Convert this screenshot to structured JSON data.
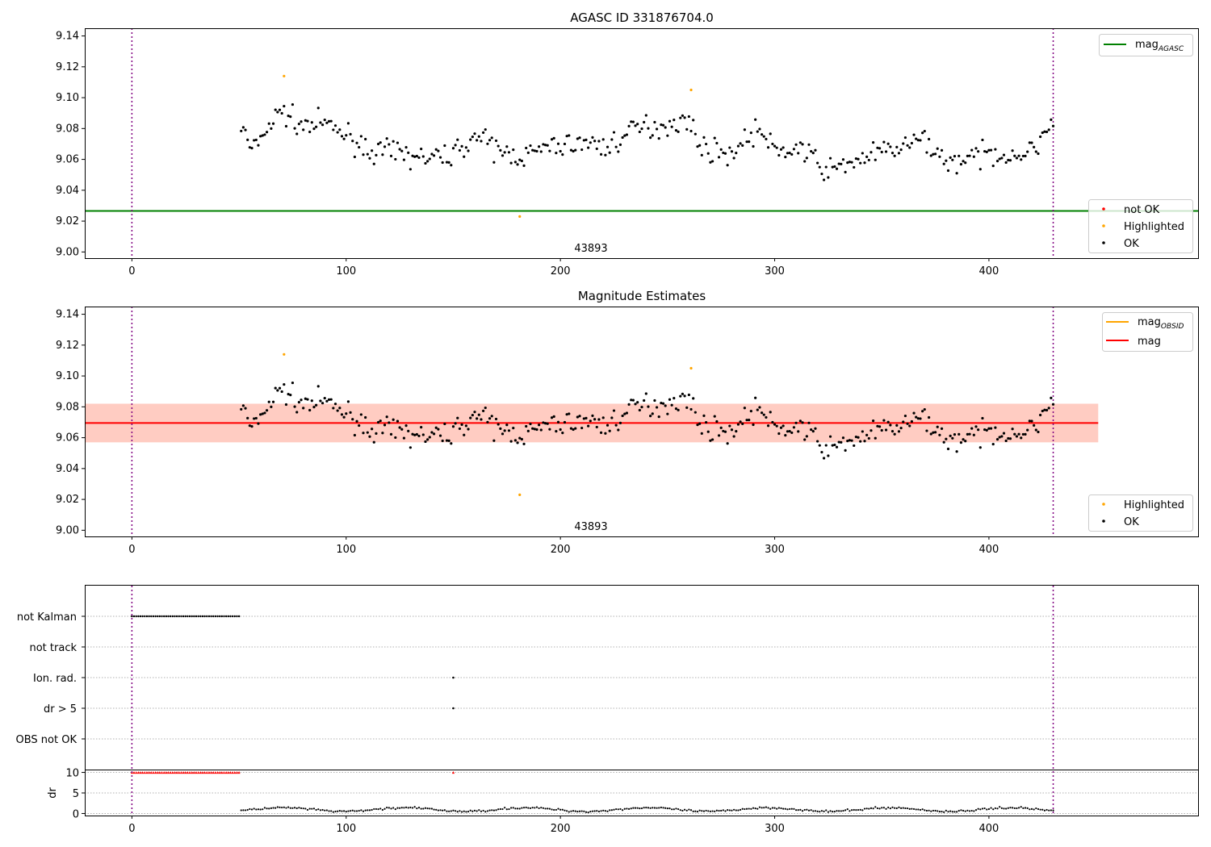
{
  "figure": {
    "panel1_title": "AGASC ID 331876704.0",
    "panel2_title": "Magnitude Estimates",
    "obsid_label": "43893"
  },
  "colors": {
    "ok": "#000000",
    "highlighted": "#ffa500",
    "not_ok": "#ff0000",
    "mag_agasc_line": "#008000",
    "mag_line": "#ff0000",
    "mag_obsid_line": "#ffa500",
    "band_red": "#ffc0cb",
    "band_orange": "#ffa07a",
    "obsid_boundary": "#800080",
    "grid": "#b0b0b0"
  },
  "legends": {
    "panel1_lines": [
      {
        "label": "mag",
        "sub": "AGASC",
        "color": "#008000"
      }
    ],
    "panel1_points": [
      {
        "label": "not OK",
        "color": "#ff0000"
      },
      {
        "label": "Highlighted",
        "color": "#ffa500"
      },
      {
        "label": "OK",
        "color": "#000000"
      }
    ],
    "panel2_lines": [
      {
        "label": "mag",
        "sub": "OBSID",
        "color": "#ffa500"
      },
      {
        "label": "mag",
        "sub": "",
        "color": "#ff0000"
      }
    ],
    "panel2_points": [
      {
        "label": "Highlighted",
        "color": "#ffa500"
      },
      {
        "label": "OK",
        "color": "#000000"
      }
    ]
  },
  "chart_data": [
    {
      "type": "scatter",
      "title": "AGASC ID 331876704.0",
      "xlim": [
        -22,
        498
      ],
      "ylim": [
        8.996,
        9.145
      ],
      "xticks": [
        0,
        100,
        200,
        300,
        400
      ],
      "yticks": [
        9.0,
        9.02,
        9.04,
        9.06,
        9.08,
        9.1,
        9.12,
        9.14
      ],
      "ytick_labels": [
        "9.00",
        "9.02",
        "9.04",
        "9.06",
        "9.08",
        "9.10",
        "9.12",
        "9.14"
      ],
      "mag_agasc": 9.0266,
      "obsid_boundaries": [
        0,
        430
      ],
      "obsid_label": "43893",
      "obsid_label_x": 215,
      "ok_range_x": [
        51,
        430
      ],
      "highlighted": [
        {
          "x": 71,
          "y": 9.114
        },
        {
          "x": 181,
          "y": 9.023
        },
        {
          "x": 261,
          "y": 9.105
        }
      ],
      "series": [
        {
          "name": "OK",
          "color": "#000000"
        },
        {
          "name": "Highlighted",
          "color": "#ffa500"
        },
        {
          "name": "not OK",
          "color": "#ff0000"
        }
      ]
    },
    {
      "type": "scatter",
      "title": "Magnitude Estimates",
      "xlim": [
        -22,
        498
      ],
      "ylim": [
        8.996,
        9.145
      ],
      "xticks": [
        0,
        100,
        200,
        300,
        400
      ],
      "yticks": [
        9.0,
        9.02,
        9.04,
        9.06,
        9.08,
        9.1,
        9.12,
        9.14
      ],
      "ytick_labels": [
        "9.00",
        "9.02",
        "9.04",
        "9.06",
        "9.08",
        "9.10",
        "9.12",
        "9.14"
      ],
      "mag": 9.0695,
      "mag_band": [
        9.057,
        9.082
      ],
      "band_xrange": [
        -22,
        451
      ],
      "mag_obsid": 9.0695,
      "obsid_boundaries": [
        0,
        430
      ],
      "obsid_label": "43893",
      "obsid_label_x": 215,
      "highlighted": [
        {
          "x": 71,
          "y": 9.114
        },
        {
          "x": 181,
          "y": 9.023
        },
        {
          "x": 261,
          "y": 9.105
        }
      ]
    },
    {
      "type": "scatter",
      "title": "",
      "xlim": [
        -22,
        498
      ],
      "categories": [
        "not Kalman",
        "not track",
        "Ion. rad.",
        "dr > 5",
        "OBS not OK"
      ],
      "flags": {
        "not Kalman": {
          "x_range": [
            0,
            50
          ]
        },
        "Ion. rad.": {
          "x": [
            150
          ]
        },
        "dr > 5": {
          "x": [
            150
          ]
        }
      },
      "dr": {
        "ylabel": "dr",
        "yticks": [
          0,
          5,
          10
        ],
        "ylim": [
          -0.5,
          10.5
        ],
        "clipped_value": 10,
        "clipped_x_range": [
          0,
          50
        ],
        "clipped_extra_x": [
          150
        ]
      },
      "xticks": [
        0,
        100,
        200,
        300,
        400
      ],
      "obsid_boundaries": [
        0,
        430
      ]
    }
  ]
}
